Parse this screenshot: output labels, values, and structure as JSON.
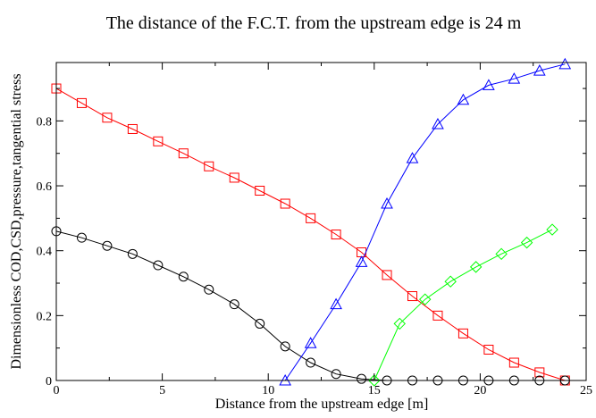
{
  "chart_data": {
    "type": "line",
    "title": "The distance of the F.C.T. from the upstream edge is 24 m",
    "xlabel": "Distance from the upstream edge [m]",
    "ylabel": "Dimensionless COD,CSD,pressure,tangential stress",
    "xlim": [
      0,
      25
    ],
    "ylim": [
      0,
      0.98
    ],
    "xticks": [
      0,
      5,
      10,
      15,
      20,
      25
    ],
    "yticks": [
      0,
      0.2,
      0.4,
      0.6,
      0.8
    ],
    "grid": false,
    "series": [
      {
        "color": "#ff0000",
        "marker": "square",
        "x": [
          0,
          1.2,
          2.4,
          3.6,
          4.8,
          6.0,
          7.2,
          8.4,
          9.6,
          10.8,
          12.0,
          13.2,
          14.4,
          15.6,
          16.8,
          18.0,
          19.2,
          20.4,
          21.6,
          22.8,
          24.0
        ],
        "y": [
          0.9,
          0.855,
          0.81,
          0.775,
          0.737,
          0.7,
          0.66,
          0.625,
          0.585,
          0.545,
          0.5,
          0.45,
          0.395,
          0.325,
          0.26,
          0.2,
          0.145,
          0.095,
          0.055,
          0.025,
          0.0
        ]
      },
      {
        "color": "#000000",
        "marker": "circle",
        "x": [
          0,
          1.2,
          2.4,
          3.6,
          4.8,
          6.0,
          7.2,
          8.4,
          9.6,
          10.8,
          12.0,
          13.2,
          14.4,
          15.6,
          16.8,
          18.0,
          19.2,
          20.4,
          21.6,
          22.8,
          24.0
        ],
        "y": [
          0.46,
          0.44,
          0.415,
          0.39,
          0.355,
          0.32,
          0.28,
          0.235,
          0.175,
          0.105,
          0.055,
          0.02,
          0.005,
          0.0,
          0.0,
          0.0,
          0.0,
          0.0,
          0.0,
          0.0,
          0.0
        ]
      },
      {
        "color": "#0000ff",
        "marker": "triangle",
        "x": [
          10.8,
          12.0,
          13.2,
          14.4,
          15.6,
          16.8,
          18.0,
          19.2,
          20.4,
          21.6,
          22.8,
          24.0
        ],
        "y": [
          0.0,
          0.115,
          0.235,
          0.365,
          0.545,
          0.685,
          0.79,
          0.865,
          0.91,
          0.93,
          0.955,
          0.975
        ]
      },
      {
        "color": "#00ff00",
        "marker": "diamond",
        "x": [
          15.0,
          16.2,
          17.4,
          18.6,
          19.8,
          21.0,
          22.2,
          23.4
        ],
        "y": [
          0.0,
          0.175,
          0.25,
          0.305,
          0.35,
          0.39,
          0.425,
          0.465
        ]
      }
    ]
  }
}
